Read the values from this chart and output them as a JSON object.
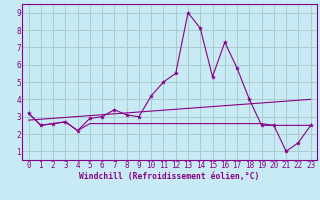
{
  "title": "",
  "xlabel": "Windchill (Refroidissement éolien,°C)",
  "ylabel": "",
  "bg_color": "#c8eaf4",
  "line_color": "#880088",
  "grid_color": "#aacccc",
  "xlim": [
    -0.5,
    23.5
  ],
  "ylim": [
    0.5,
    9.5
  ],
  "xticks": [
    0,
    1,
    2,
    3,
    4,
    5,
    6,
    7,
    8,
    9,
    10,
    11,
    12,
    13,
    14,
    15,
    16,
    17,
    18,
    19,
    20,
    21,
    22,
    23
  ],
  "yticks": [
    1,
    2,
    3,
    4,
    5,
    6,
    7,
    8,
    9
  ],
  "series1_x": [
    0,
    1,
    2,
    3,
    4,
    5,
    6,
    7,
    8,
    9,
    10,
    11,
    12,
    13,
    14,
    15,
    16,
    17,
    18,
    19,
    20,
    21,
    22,
    23
  ],
  "series1_y": [
    3.2,
    2.5,
    2.6,
    2.7,
    2.2,
    2.9,
    3.0,
    3.4,
    3.1,
    3.0,
    4.2,
    5.0,
    5.5,
    9.0,
    8.1,
    5.3,
    7.3,
    5.8,
    4.0,
    2.5,
    2.5,
    1.0,
    1.5,
    2.5
  ],
  "series2_x": [
    0,
    1,
    2,
    3,
    4,
    5,
    6,
    7,
    8,
    9,
    10,
    11,
    12,
    13,
    14,
    15,
    16,
    17,
    18,
    19,
    20,
    21,
    22,
    23
  ],
  "series2_y": [
    3.2,
    2.5,
    2.6,
    2.7,
    2.2,
    2.6,
    2.6,
    2.6,
    2.6,
    2.6,
    2.6,
    2.6,
    2.6,
    2.6,
    2.6,
    2.6,
    2.6,
    2.6,
    2.6,
    2.6,
    2.5,
    2.5,
    2.5,
    2.5
  ],
  "series3_x": [
    0,
    23
  ],
  "series3_y": [
    2.8,
    4.0
  ],
  "font_color": "#880088",
  "font_family": "monospace",
  "font_size": 5.5,
  "tick_font_size": 5.5,
  "xlabel_fontsize": 5.8,
  "linewidth": 0.8,
  "markersize": 3.0
}
